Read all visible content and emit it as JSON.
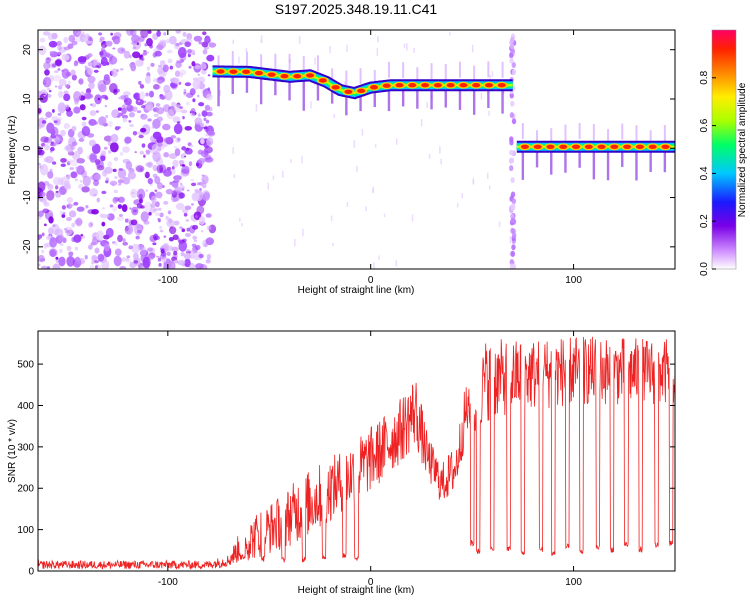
{
  "title": "S197.2025.348.19.11.C41",
  "chart_data": [
    {
      "type": "heatmap",
      "xlabel": "Height of straight line (km)",
      "ylabel": "Frequency (Hz)",
      "xlim": [
        -164,
        150
      ],
      "ylim": [
        -24.5,
        24
      ],
      "xticks": [
        -100,
        0,
        100
      ],
      "yticks": [
        -20,
        -10,
        0,
        10,
        20
      ],
      "colorbar": {
        "label": "Normalized spectral amplitude",
        "range": [
          0,
          1
        ],
        "ticks": [
          0,
          0.2,
          0.4,
          0.6,
          0.8
        ],
        "tick_labels": [
          "0.0",
          "0.2",
          "0.4",
          "0.6",
          "0.8"
        ],
        "colors": [
          "#ffffff",
          "#cc88ff",
          "#7a00e6",
          "#1a1aff",
          "#00c8ff",
          "#00ff66",
          "#aaff00",
          "#ffee00",
          "#ff8800",
          "#ff2200",
          "#ff0066"
        ]
      },
      "noise_region": {
        "x_start": -164,
        "x_end": -78,
        "freq_range": [
          -24.5,
          24
        ]
      },
      "tones": [
        {
          "x_start": -78,
          "x_end": 70,
          "path": [
            [
              -78,
              15.6
            ],
            [
              -60,
              15.5
            ],
            [
              -50,
              15.0
            ],
            [
              -40,
              14.5
            ],
            [
              -30,
              14.8
            ],
            [
              -22,
              13.5
            ],
            [
              -15,
              11.8
            ],
            [
              -8,
              11.2
            ],
            [
              0,
              12.3
            ],
            [
              10,
              12.8
            ],
            [
              30,
              12.8
            ],
            [
              50,
              12.8
            ],
            [
              70,
              12.8
            ]
          ]
        },
        {
          "x_start": 72,
          "x_end": 150,
          "path": [
            [
              72,
              0.3
            ],
            [
              150,
              0.3
            ]
          ]
        }
      ],
      "vertical_noise_line": {
        "x": 70
      }
    },
    {
      "type": "line",
      "xlabel": "Height of straight line (km)",
      "ylabel": "SNR (10 * v/v)",
      "xlim": [
        -164,
        150
      ],
      "ylim": [
        0,
        580
      ],
      "xticks": [
        -100,
        0,
        100
      ],
      "yticks": [
        0,
        100,
        200,
        300,
        400,
        500
      ],
      "color": "#ee2222",
      "envelope": [
        {
          "x": -164,
          "low": 5,
          "high": 25
        },
        {
          "x": -80,
          "low": 5,
          "high": 25
        },
        {
          "x": -70,
          "low": 10,
          "high": 40
        },
        {
          "x": -65,
          "low": 20,
          "high": 90
        },
        {
          "x": -55,
          "low": 30,
          "high": 150
        },
        {
          "x": -45,
          "low": 50,
          "high": 180
        },
        {
          "x": -35,
          "low": 70,
          "high": 230
        },
        {
          "x": -25,
          "low": 100,
          "high": 260
        },
        {
          "x": -15,
          "low": 140,
          "high": 290
        },
        {
          "x": -5,
          "low": 170,
          "high": 330
        },
        {
          "x": 5,
          "low": 210,
          "high": 370
        },
        {
          "x": 15,
          "low": 260,
          "high": 420
        },
        {
          "x": 22,
          "low": 300,
          "high": 480
        },
        {
          "x": 28,
          "low": 220,
          "high": 330
        },
        {
          "x": 35,
          "low": 160,
          "high": 260
        },
        {
          "x": 42,
          "low": 190,
          "high": 310
        },
        {
          "x": 47,
          "low": 320,
          "high": 460
        },
        {
          "x": 52,
          "low": 330,
          "high": 400
        },
        {
          "x": 56,
          "low": 360,
          "high": 560
        },
        {
          "x": 70,
          "low": 380,
          "high": 560
        },
        {
          "x": 100,
          "low": 400,
          "high": 570
        },
        {
          "x": 150,
          "low": 400,
          "high": 560
        }
      ],
      "dropouts": [
        {
          "x": -63,
          "depth": 25
        },
        {
          "x": -53,
          "depth": 22
        },
        {
          "x": -43,
          "depth": 18
        },
        {
          "x": -33,
          "depth": 20
        },
        {
          "x": -23,
          "depth": 25
        },
        {
          "x": -13,
          "depth": 30
        },
        {
          "x": -7,
          "depth": 25
        },
        {
          "x": 50,
          "depth": 60
        },
        {
          "x": 53,
          "depth": 40
        },
        {
          "x": 60,
          "depth": 45
        },
        {
          "x": 68,
          "depth": 45
        },
        {
          "x": 75,
          "depth": 35
        },
        {
          "x": 84,
          "depth": 45
        },
        {
          "x": 90,
          "depth": 35
        },
        {
          "x": 97,
          "depth": 50
        },
        {
          "x": 104,
          "depth": 40
        },
        {
          "x": 112,
          "depth": 50
        },
        {
          "x": 119,
          "depth": 45
        },
        {
          "x": 126,
          "depth": 55
        },
        {
          "x": 133,
          "depth": 45
        },
        {
          "x": 141,
          "depth": 55
        },
        {
          "x": 148,
          "depth": 60
        }
      ]
    }
  ]
}
